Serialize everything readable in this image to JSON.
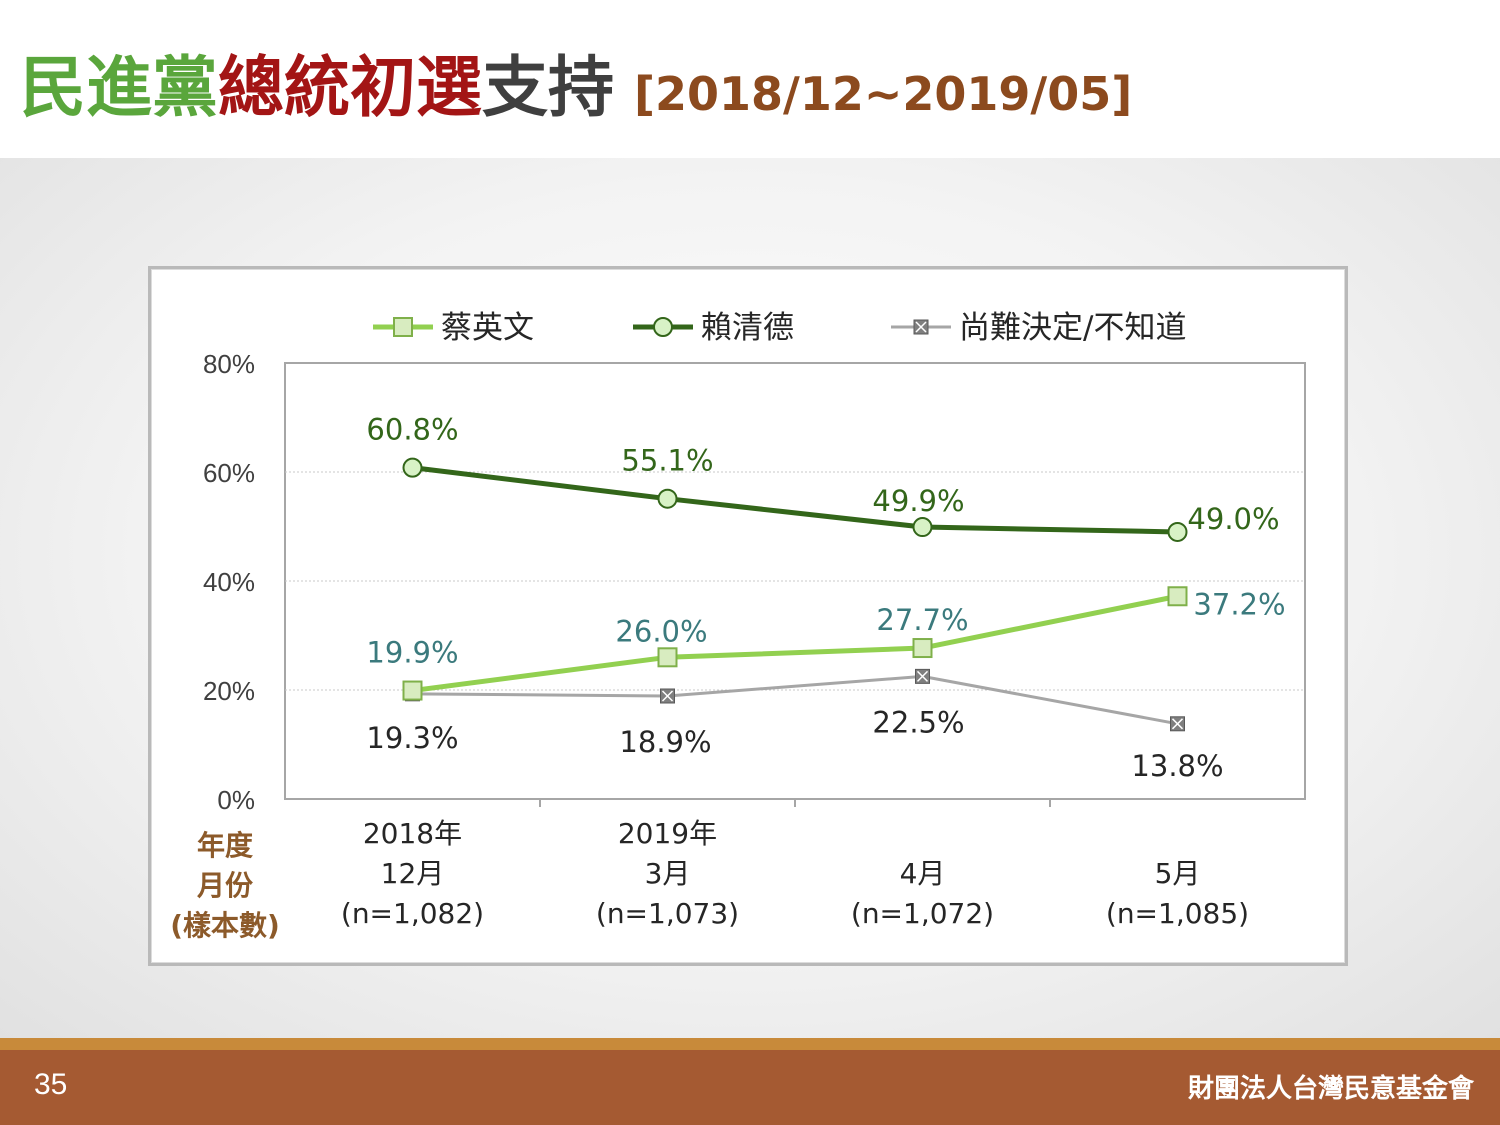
{
  "title": {
    "part1": "民進黨",
    "part2": "總統初選",
    "part3": "支持",
    "range": "[2018/12~2019/05]"
  },
  "footer": {
    "page_number": "35",
    "organization": "財團法人台灣民意基金會"
  },
  "colors": {
    "tsai": "#92d050",
    "tsai_marker_fill": "#d8ecc0",
    "tsai_label": "#3b7a7d",
    "lai": "#33661a",
    "lai_marker_fill": "#d8f2c6",
    "lai_label": "#33661a",
    "undecided": "#a6a6a6",
    "undecided_marker": "#7f7f7f",
    "undecided_label": "#262626",
    "axis_title": "#8c5a2a"
  },
  "chart_data": {
    "type": "line",
    "categories": [
      [
        "2018年",
        "12月",
        "(n=1,082)"
      ],
      [
        "2019年",
        "3月",
        "(n=1,073)"
      ],
      [
        "4月",
        "(n=1,072)"
      ],
      [
        "5月",
        "(n=1,085)"
      ]
    ],
    "x_axis_title": [
      "年度",
      "月份",
      "(樣本數)"
    ],
    "y_ticks": [
      "80%",
      "60%",
      "40%",
      "20%",
      "0%"
    ],
    "ylim": [
      0,
      80
    ],
    "grid": true,
    "legend_position": "top",
    "series": [
      {
        "name": "蔡英文",
        "values": [
          19.9,
          26.0,
          27.7,
          37.2
        ],
        "labels": [
          "19.9%",
          "26.0%",
          "27.7%",
          "37.2%"
        ]
      },
      {
        "name": "賴清德",
        "values": [
          60.8,
          55.1,
          49.9,
          49.0
        ],
        "labels": [
          "60.8%",
          "55.1%",
          "49.9%",
          "49.0%"
        ]
      },
      {
        "name": "尚難決定/不知道",
        "values": [
          19.3,
          18.9,
          22.5,
          13.8
        ],
        "labels": [
          "19.3%",
          "18.9%",
          "22.5%",
          "13.8%"
        ]
      }
    ]
  }
}
